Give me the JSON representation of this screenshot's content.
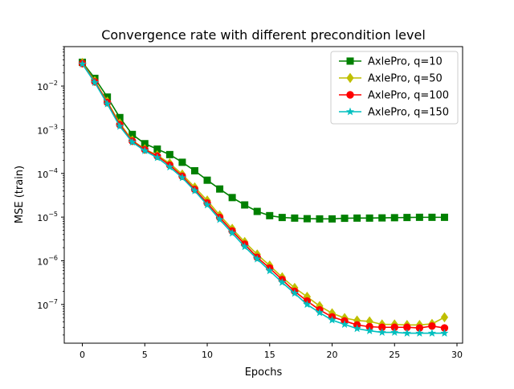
{
  "chart_data": {
    "type": "line",
    "title": "Convergence rate with different precondition level",
    "xlabel": "Epochs",
    "ylabel": "MSE (train)",
    "xlim": [
      -1.45,
      30.45
    ],
    "ylim": [
      1.3e-08,
      0.08
    ],
    "yscale": "log",
    "grid": false,
    "legend_position": "top-right",
    "x_ticks": [
      0,
      5,
      10,
      15,
      20,
      25,
      30
    ],
    "y_ticks": [
      {
        "value": 1e-07,
        "base": "10",
        "exp": "−7"
      },
      {
        "value": 1e-06,
        "base": "10",
        "exp": "−6"
      },
      {
        "value": 1e-05,
        "base": "10",
        "exp": "−5"
      },
      {
        "value": 0.0001,
        "base": "10",
        "exp": "−4"
      },
      {
        "value": 0.001,
        "base": "10",
        "exp": "−3"
      },
      {
        "value": 0.01,
        "base": "10",
        "exp": "−2"
      }
    ],
    "x": [
      0,
      1,
      2,
      3,
      4,
      5,
      6,
      7,
      8,
      9,
      10,
      11,
      12,
      13,
      14,
      15,
      16,
      17,
      18,
      19,
      20,
      21,
      22,
      23,
      24,
      25,
      26,
      27,
      28,
      29
    ],
    "series": [
      {
        "name": "AxlePro, q=10",
        "color": "#008000",
        "marker": "square",
        "values": [
          0.035,
          0.015,
          0.0056,
          0.0019,
          0.00078,
          0.00048,
          0.00036,
          0.00027,
          0.00018,
          0.000115,
          7e-05,
          4.4e-05,
          2.8e-05,
          1.9e-05,
          1.35e-05,
          1.08e-05,
          9.8e-06,
          9.5e-06,
          9.2e-06,
          9.1e-06,
          9.1e-06,
          9.4e-06,
          9.5e-06,
          9.5e-06,
          9.6e-06,
          9.7e-06,
          9.8e-06,
          9.9e-06,
          9.9e-06,
          9.9e-06
        ]
      },
      {
        "name": "AxlePro, q=50",
        "color": "#bfbf00",
        "marker": "diamond",
        "values": [
          0.034,
          0.013,
          0.0044,
          0.0014,
          0.00057,
          0.00036,
          0.00026,
          0.00017,
          9.5e-05,
          4.8e-05,
          2.4e-05,
          1.1e-05,
          5.4e-06,
          2.7e-06,
          1.4e-06,
          7.8e-07,
          4.2e-07,
          2.4e-07,
          1.5e-07,
          9.2e-08,
          6.3e-08,
          4.9e-08,
          4.3e-08,
          4.1e-08,
          3.5e-08,
          3.5e-08,
          3.4e-08,
          3.4e-08,
          3.6e-08,
          5.1e-08
        ]
      },
      {
        "name": "AxlePro, q=100",
        "color": "#ff0000",
        "marker": "circle",
        "values": [
          0.033,
          0.0125,
          0.0042,
          0.0013,
          0.00055,
          0.00035,
          0.00025,
          0.000155,
          8.6e-05,
          4.3e-05,
          2.1e-05,
          9.8e-06,
          4.8e-06,
          2.4e-06,
          1.2e-06,
          6.8e-07,
          3.7e-07,
          2e-07,
          1.2e-07,
          7.5e-08,
          5.2e-08,
          4.2e-08,
          3.4e-08,
          3.1e-08,
          3e-08,
          3e-08,
          3e-08,
          2.9e-08,
          3.2e-08,
          2.9e-08
        ]
      },
      {
        "name": "AxlePro, q=150",
        "color": "#00bfbf",
        "marker": "star",
        "values": [
          0.032,
          0.012,
          0.0039,
          0.0012,
          0.00052,
          0.00033,
          0.00023,
          0.00014,
          8e-05,
          4e-05,
          1.9e-05,
          8.8e-06,
          4.3e-06,
          2.1e-06,
          1.1e-06,
          5.9e-07,
          3.2e-07,
          1.8e-07,
          1e-07,
          6.5e-08,
          4.4e-08,
          3.5e-08,
          2.8e-08,
          2.5e-08,
          2.3e-08,
          2.3e-08,
          2.2e-08,
          2.2e-08,
          2.2e-08,
          2.2e-08
        ]
      }
    ]
  }
}
